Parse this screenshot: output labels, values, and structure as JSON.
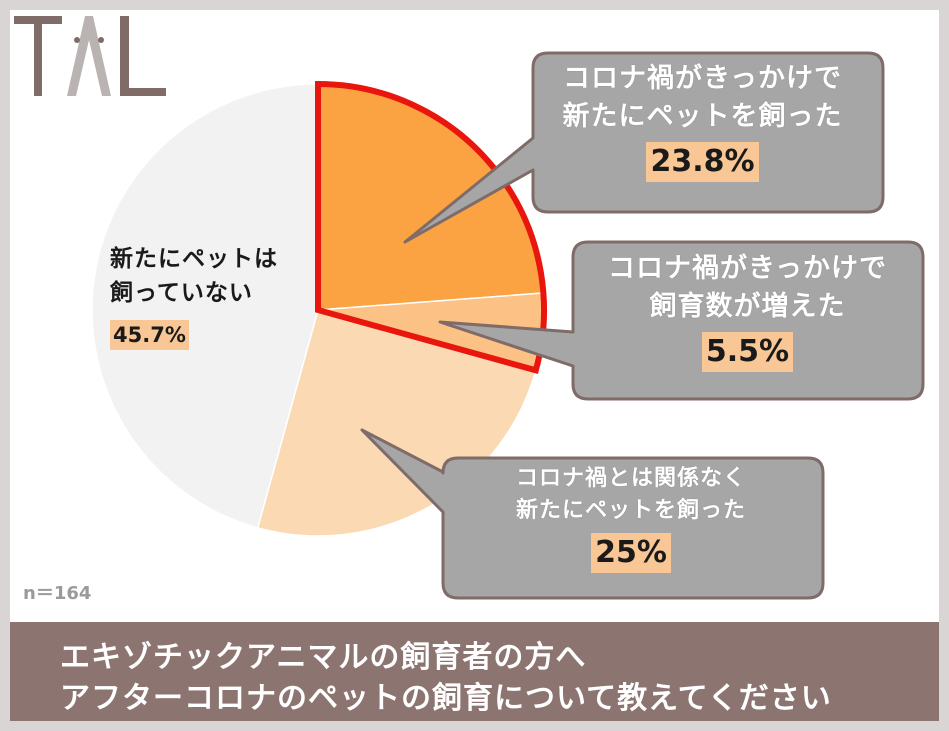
{
  "logo": {
    "text": "TAL"
  },
  "sample": {
    "label": "n＝164"
  },
  "banner": {
    "line1": "エキゾチックアニマルの飼育者の方へ",
    "line2": "アフターコロナのペットの飼育について教えてください"
  },
  "colors": {
    "slice_new_due_covid": "#fba243",
    "slice_increased": "#fbc185",
    "slice_unrelated": "#fbd9b3",
    "slice_none": "#f2f2f2",
    "highlight_border": "#e8160c",
    "callout_fill": "#a6a6a6",
    "callout_border": "#7f6b67",
    "banner": "#8c7571"
  },
  "callouts": [
    {
      "lines": [
        "コロナ禍がきっかけで",
        "新たにペットを飼った"
      ],
      "pct": "23.8%"
    },
    {
      "lines": [
        "コロナ禍がきっかけで",
        "飼育数が増えた"
      ],
      "pct": "5.5%"
    },
    {
      "lines": [
        "コロナ禍とは関係なく",
        "新たにペットを飼った"
      ],
      "pct": "25%"
    }
  ],
  "none_label": {
    "lines": [
      "新たにペットは",
      "飼っていない"
    ],
    "pct": "45.7%"
  },
  "chart_data": {
    "type": "pie",
    "categories": [
      "コロナ禍がきっかけで新たにペットを飼った",
      "コロナ禍がきっかけで飼育数が増えた",
      "コロナ禍とは関係なく新たにペットを飼った",
      "新たにペットは飼っていない"
    ],
    "values": [
      23.8,
      5.5,
      25,
      45.7
    ],
    "unit": "%",
    "n": 164,
    "highlighted": [
      0,
      1
    ]
  }
}
